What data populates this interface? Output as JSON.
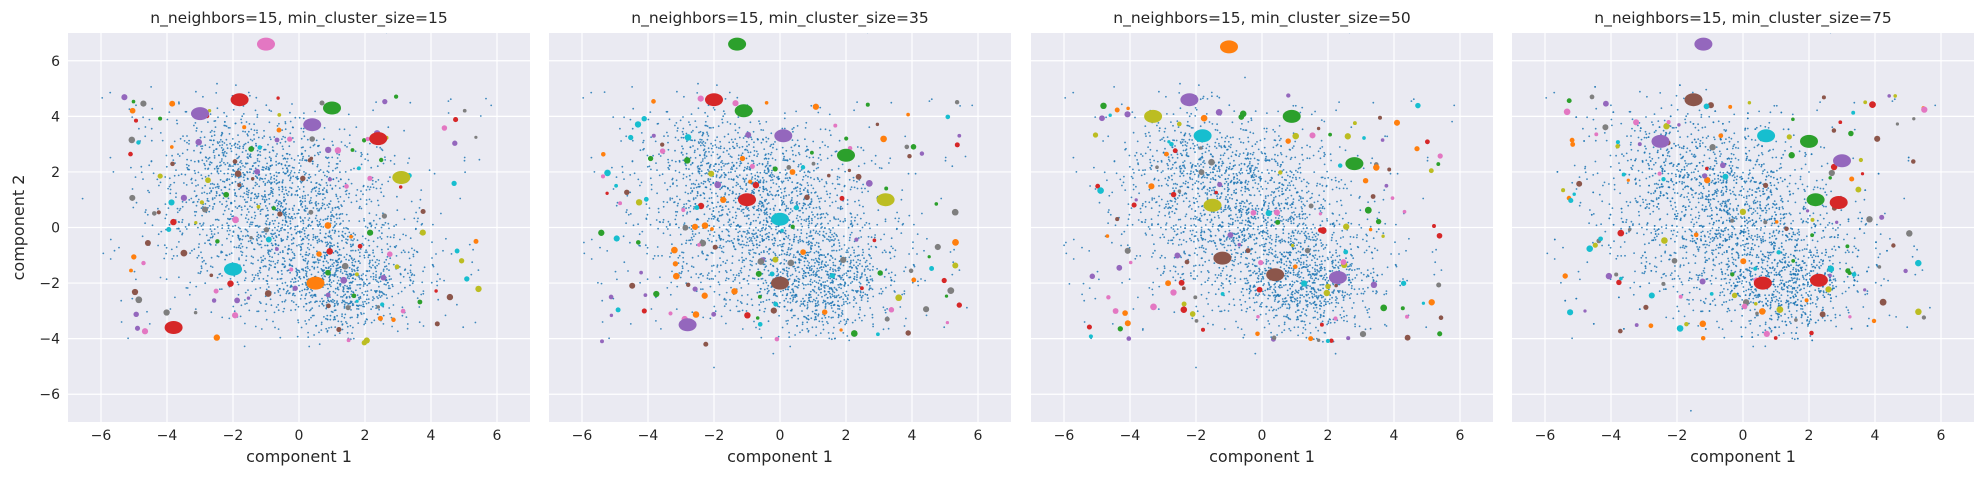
{
  "palette": [
    "#1f77b4",
    "#ff7f0e",
    "#2ca02c",
    "#d62728",
    "#9467bd",
    "#8c564b",
    "#e377c2",
    "#7f7f7f",
    "#bcbd22",
    "#17becf"
  ],
  "style": {
    "panel_bg": "#eaeaf2",
    "grid_color": "#ffffff"
  },
  "chart_data": [
    {
      "type": "scatter",
      "title": "n_neighbors=15, min_cluster_size=15",
      "xlabel": "component 1",
      "ylabel": "component 2",
      "xlim": [
        -7,
        7
      ],
      "ylim": [
        -7,
        7
      ],
      "xticks": [
        -6,
        -4,
        -2,
        0,
        2,
        4,
        6
      ],
      "yticks": [
        -6,
        -4,
        -2,
        0,
        2,
        4,
        6
      ],
      "grid": true,
      "clusters": [
        {
          "x": -1.8,
          "y": 4.6,
          "color_index": 3
        },
        {
          "x": -3.0,
          "y": 4.1,
          "color_index": 4
        },
        {
          "x": 0.4,
          "y": 3.7,
          "color_index": 4
        },
        {
          "x": 1.0,
          "y": 4.3,
          "color_index": 2
        },
        {
          "x": 2.4,
          "y": 3.2,
          "color_index": 3
        },
        {
          "x": 3.1,
          "y": 1.8,
          "color_index": 8
        },
        {
          "x": 0.5,
          "y": -2.0,
          "color_index": 1
        },
        {
          "x": -2.0,
          "y": -1.5,
          "color_index": 9
        },
        {
          "x": -3.8,
          "y": -3.6,
          "color_index": 3
        },
        {
          "x": -1.0,
          "y": 6.6,
          "color_index": 6
        }
      ]
    },
    {
      "type": "scatter",
      "title": "n_neighbors=15, min_cluster_size=35",
      "xlabel": "component 1",
      "ylabel": "",
      "xlim": [
        -7,
        7
      ],
      "ylim": [
        -7,
        7
      ],
      "xticks": [
        -6,
        -4,
        -2,
        0,
        2,
        4,
        6
      ],
      "yticks": [
        -6,
        -4,
        -2,
        0,
        2,
        4,
        6
      ],
      "grid": true,
      "clusters": [
        {
          "x": -2.0,
          "y": 4.6,
          "color_index": 3
        },
        {
          "x": -1.1,
          "y": 4.2,
          "color_index": 2
        },
        {
          "x": 0.1,
          "y": 3.3,
          "color_index": 4
        },
        {
          "x": 2.0,
          "y": 2.6,
          "color_index": 2
        },
        {
          "x": 0.0,
          "y": 0.3,
          "color_index": 9
        },
        {
          "x": 0.0,
          "y": -2.0,
          "color_index": 5
        },
        {
          "x": -1.0,
          "y": 1.0,
          "color_index": 3
        },
        {
          "x": 3.2,
          "y": 1.0,
          "color_index": 8
        },
        {
          "x": -2.8,
          "y": -3.5,
          "color_index": 4
        },
        {
          "x": -1.3,
          "y": 6.6,
          "color_index": 2
        }
      ]
    },
    {
      "type": "scatter",
      "title": "n_neighbors=15, min_cluster_size=50",
      "xlabel": "component 1",
      "ylabel": "",
      "xlim": [
        -7,
        7
      ],
      "ylim": [
        -7,
        7
      ],
      "xticks": [
        -6,
        -4,
        -2,
        0,
        2,
        4,
        6
      ],
      "yticks": [
        -6,
        -4,
        -2,
        0,
        2,
        4,
        6
      ],
      "grid": true,
      "clusters": [
        {
          "x": -2.2,
          "y": 4.6,
          "color_index": 4
        },
        {
          "x": -3.3,
          "y": 4.0,
          "color_index": 8
        },
        {
          "x": -1.8,
          "y": 3.3,
          "color_index": 9
        },
        {
          "x": 0.9,
          "y": 4.0,
          "color_index": 2
        },
        {
          "x": -1.5,
          "y": 0.8,
          "color_index": 8
        },
        {
          "x": -1.2,
          "y": -1.1,
          "color_index": 5
        },
        {
          "x": 0.4,
          "y": -1.7,
          "color_index": 5
        },
        {
          "x": 2.3,
          "y": -1.8,
          "color_index": 4
        },
        {
          "x": 2.8,
          "y": 2.3,
          "color_index": 2
        },
        {
          "x": -1.0,
          "y": 6.5,
          "color_index": 1
        }
      ]
    },
    {
      "type": "scatter",
      "title": "n_neighbors=15, min_cluster_size=75",
      "xlabel": "component 1",
      "ylabel": "",
      "xlim": [
        -7,
        7
      ],
      "ylim": [
        -7,
        7
      ],
      "xticks": [
        -6,
        -4,
        -2,
        0,
        2,
        4,
        6
      ],
      "yticks": [
        -6,
        -4,
        -2,
        0,
        2,
        4,
        6
      ],
      "grid": true,
      "clusters": [
        {
          "x": -1.5,
          "y": 4.6,
          "color_index": 5
        },
        {
          "x": -2.5,
          "y": 3.1,
          "color_index": 4
        },
        {
          "x": 0.7,
          "y": 3.3,
          "color_index": 9
        },
        {
          "x": 2.0,
          "y": 3.1,
          "color_index": 2
        },
        {
          "x": 3.0,
          "y": 2.4,
          "color_index": 4
        },
        {
          "x": 2.2,
          "y": 1.0,
          "color_index": 2
        },
        {
          "x": 2.9,
          "y": 0.9,
          "color_index": 3
        },
        {
          "x": 0.6,
          "y": -2.0,
          "color_index": 3
        },
        {
          "x": 2.3,
          "y": -1.9,
          "color_index": 3
        },
        {
          "x": -1.2,
          "y": 6.6,
          "color_index": 4
        }
      ]
    }
  ]
}
